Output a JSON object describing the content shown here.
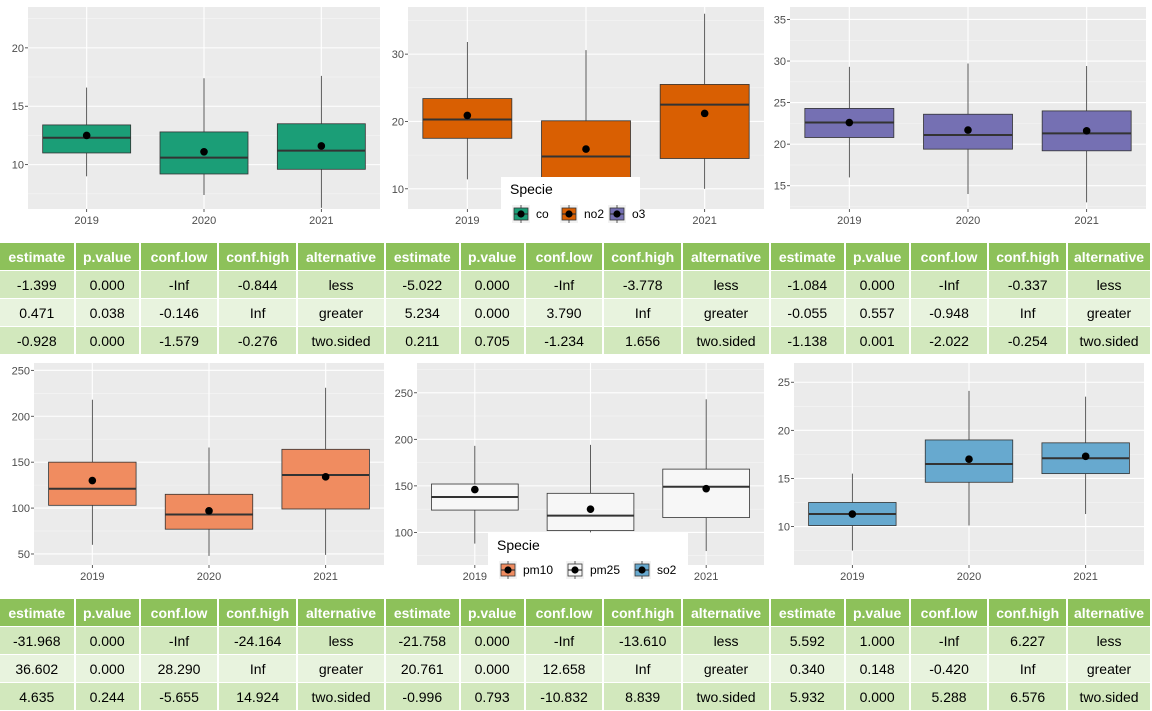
{
  "chart_data": [
    {
      "type": "boxplot",
      "species": "co",
      "color": "#1b9e77",
      "categories": [
        "2019",
        "2020",
        "2021"
      ],
      "yticks": [
        10,
        15,
        20
      ],
      "ylim": [
        6.2,
        23.5
      ],
      "boxes": [
        {
          "min": 9.0,
          "q1": 11.0,
          "median": 12.3,
          "q3": 13.4,
          "max": 16.6,
          "mean": 12.5
        },
        {
          "min": 7.4,
          "q1": 9.2,
          "median": 10.6,
          "q3": 12.8,
          "max": 17.4,
          "mean": 11.1
        },
        {
          "min": 6.3,
          "q1": 9.6,
          "median": 11.2,
          "q3": 13.5,
          "max": 17.6,
          "mean": 11.6
        }
      ]
    },
    {
      "type": "boxplot",
      "species": "no2",
      "color": "#d95f02",
      "categories": [
        "2019",
        "2020",
        "2021"
      ],
      "yticks": [
        10,
        20,
        30
      ],
      "ylim": [
        7,
        37
      ],
      "boxes": [
        {
          "min": 11.4,
          "q1": 17.5,
          "median": 20.3,
          "q3": 23.4,
          "max": 31.8,
          "mean": 20.9
        },
        {
          "min": 5.0,
          "q1": 11.5,
          "median": 14.8,
          "q3": 20.1,
          "max": 30.6,
          "mean": 15.9
        },
        {
          "min": 10.0,
          "q1": 14.5,
          "median": 22.5,
          "q3": 25.5,
          "max": 36.0,
          "mean": 21.2
        }
      ]
    },
    {
      "type": "boxplot",
      "species": "o3",
      "color": "#7570b3",
      "categories": [
        "2019",
        "2020",
        "2021"
      ],
      "yticks": [
        15,
        20,
        25,
        30,
        35
      ],
      "ylim": [
        12.2,
        36.5
      ],
      "boxes": [
        {
          "min": 16.0,
          "q1": 20.8,
          "median": 22.6,
          "q3": 24.3,
          "max": 29.3,
          "mean": 22.6
        },
        {
          "min": 14.0,
          "q1": 19.4,
          "median": 21.1,
          "q3": 23.6,
          "max": 29.7,
          "mean": 21.7
        },
        {
          "min": 13.0,
          "q1": 19.2,
          "median": 21.3,
          "q3": 24.0,
          "max": 29.4,
          "mean": 21.6
        }
      ]
    },
    {
      "type": "boxplot",
      "species": "pm10",
      "color": "#f08c60",
      "categories": [
        "2019",
        "2020",
        "2021"
      ],
      "yticks": [
        50,
        100,
        150,
        200,
        250
      ],
      "ylim": [
        38,
        258
      ],
      "boxes": [
        {
          "min": 60,
          "q1": 103,
          "median": 121,
          "q3": 150,
          "max": 218,
          "mean": 130
        },
        {
          "min": 48,
          "q1": 77,
          "median": 93,
          "q3": 115,
          "max": 166,
          "mean": 97
        },
        {
          "min": 49,
          "q1": 99,
          "median": 136,
          "q3": 164,
          "max": 231,
          "mean": 134
        }
      ]
    },
    {
      "type": "boxplot",
      "species": "pm25",
      "color": "#f7f7f7",
      "categories": [
        "2019",
        "2020",
        "2021"
      ],
      "yticks": [
        100,
        150,
        200,
        250
      ],
      "ylim": [
        65,
        282
      ],
      "boxes": [
        {
          "min": 88,
          "q1": 124,
          "median": 138,
          "q3": 152,
          "max": 193,
          "mean": 146
        },
        {
          "min": 100,
          "q1": 102,
          "median": 118,
          "q3": 142,
          "max": 194,
          "mean": 125
        },
        {
          "min": 80,
          "q1": 116,
          "median": 149,
          "q3": 168,
          "max": 243,
          "mean": 147
        }
      ]
    },
    {
      "type": "boxplot",
      "species": "so2",
      "color": "#67a9cf",
      "categories": [
        "2019",
        "2020",
        "2021"
      ],
      "yticks": [
        10,
        15,
        20,
        25
      ],
      "ylim": [
        6.0,
        27.0
      ],
      "boxes": [
        {
          "min": 7.5,
          "q1": 10.1,
          "median": 11.3,
          "q3": 12.5,
          "max": 15.5,
          "mean": 11.3
        },
        {
          "min": 10.1,
          "q1": 14.6,
          "median": 16.5,
          "q3": 19.0,
          "max": 24.1,
          "mean": 17.0
        },
        {
          "min": 11.3,
          "q1": 15.5,
          "median": 17.1,
          "q3": 18.7,
          "max": 23.5,
          "mean": 17.3
        }
      ]
    }
  ],
  "legends": [
    {
      "title": "Specie",
      "items": [
        {
          "label": "co",
          "color": "#1b9e77"
        },
        {
          "label": "no2",
          "color": "#d95f02"
        },
        {
          "label": "o3",
          "color": "#7570b3"
        }
      ]
    },
    {
      "title": "Specie",
      "items": [
        {
          "label": "pm10",
          "color": "#f08c60"
        },
        {
          "label": "pm25",
          "color": "#f7f7f7"
        },
        {
          "label": "so2",
          "color": "#67a9cf"
        }
      ]
    }
  ],
  "tables": [
    {
      "headers": [
        "estimate",
        "p.value",
        "conf.low",
        "conf.high",
        "alternative",
        "estimate",
        "p.value",
        "conf.low",
        "conf.high",
        "alternative",
        "estimate",
        "p.value",
        "conf.low",
        "conf.high",
        "alternative"
      ],
      "rows": [
        [
          "-1.399",
          "0.000",
          "-Inf",
          "-0.844",
          "less",
          "-5.022",
          "0.000",
          "-Inf",
          "-3.778",
          "less",
          "-1.084",
          "0.000",
          "-Inf",
          "-0.337",
          "less"
        ],
        [
          "0.471",
          "0.038",
          "-0.146",
          "Inf",
          "greater",
          "5.234",
          "0.000",
          "3.790",
          "Inf",
          "greater",
          "-0.055",
          "0.557",
          "-0.948",
          "Inf",
          "greater"
        ],
        [
          "-0.928",
          "0.000",
          "-1.579",
          "-0.276",
          "two.sided",
          "0.211",
          "0.705",
          "-1.234",
          "1.656",
          "two.sided",
          "-1.138",
          "0.001",
          "-2.022",
          "-0.254",
          "two.sided"
        ]
      ]
    },
    {
      "headers": [
        "estimate",
        "p.value",
        "conf.low",
        "conf.high",
        "alternative",
        "estimate",
        "p.value",
        "conf.low",
        "conf.high",
        "alternative",
        "estimate",
        "p.value",
        "conf.low",
        "conf.high",
        "alternative"
      ],
      "rows": [
        [
          "-31.968",
          "0.000",
          "-Inf",
          "-24.164",
          "less",
          "-21.758",
          "0.000",
          "-Inf",
          "-13.610",
          "less",
          "5.592",
          "1.000",
          "-Inf",
          "6.227",
          "less"
        ],
        [
          "36.602",
          "0.000",
          "28.290",
          "Inf",
          "greater",
          "20.761",
          "0.000",
          "12.658",
          "Inf",
          "greater",
          "0.340",
          "0.148",
          "-0.420",
          "Inf",
          "greater"
        ],
        [
          "4.635",
          "0.244",
          "-5.655",
          "14.924",
          "two.sided",
          "-0.996",
          "0.793",
          "-10.832",
          "8.839",
          "two.sided",
          "5.932",
          "0.000",
          "5.288",
          "6.576",
          "two.sided"
        ]
      ]
    }
  ]
}
